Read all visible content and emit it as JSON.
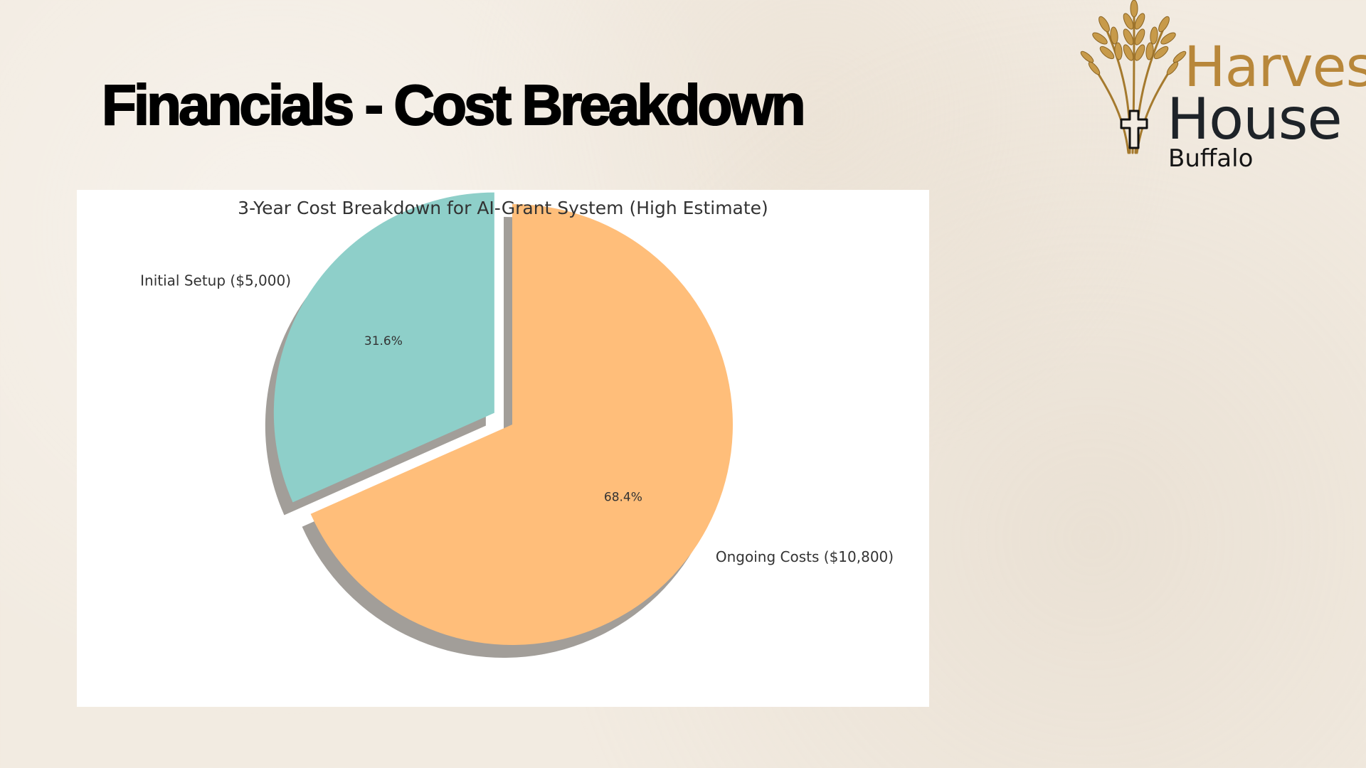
{
  "slide": {
    "title": "Financials - Cost Breakdown"
  },
  "logo": {
    "word_top": "Harvest",
    "word_middle": "House",
    "word_bottom": "Buffalo",
    "colors": {
      "gold": "#b8873a",
      "dark": "#1e2328"
    },
    "icon": "wheat-cross-icon"
  },
  "chart_data": {
    "type": "pie",
    "title": "3-Year Cost Breakdown for AI-Grant System (High Estimate)",
    "slices": [
      {
        "label": "Initial Setup ($5,000)",
        "value": 5000,
        "pct_label": "31.6%",
        "color": "#8ecfc9",
        "exploded": true
      },
      {
        "label": "Ongoing Costs ($10,800)",
        "value": 10800,
        "pct_label": "68.4%",
        "color": "#ffbe7a",
        "exploded": false
      }
    ],
    "start_angle_deg": 90,
    "direction": "counterclockwise",
    "shadow": true,
    "legend": "none"
  }
}
